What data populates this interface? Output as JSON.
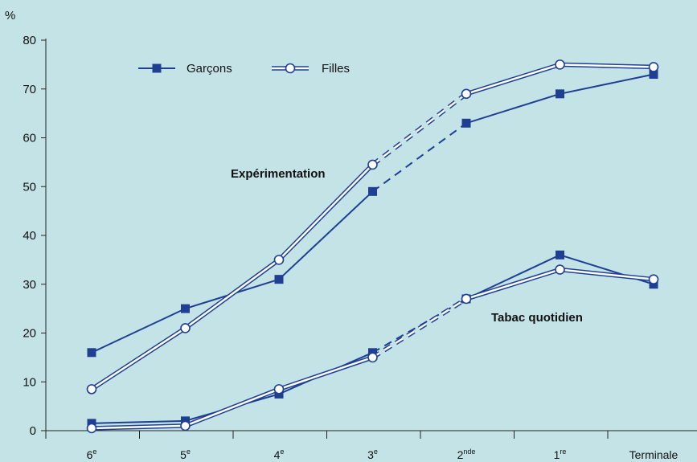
{
  "chart_data": {
    "type": "line",
    "ylabel": "%",
    "ylim": [
      0,
      80
    ],
    "yticks": [
      0,
      10,
      20,
      30,
      40,
      50,
      60,
      70,
      80
    ],
    "categories": [
      {
        "base": "6",
        "sup": "e"
      },
      {
        "base": "5",
        "sup": "e"
      },
      {
        "base": "4",
        "sup": "e"
      },
      {
        "base": "3",
        "sup": "e"
      },
      {
        "base": "2",
        "sup": "nde"
      },
      {
        "base": "1",
        "sup": "re"
      },
      {
        "base": "Terminale",
        "sup": ""
      }
    ],
    "legend": {
      "position": "top-left",
      "entries": [
        {
          "label": "Garçons",
          "marker": "filled-square",
          "color": "#1f3f93"
        },
        {
          "label": "Filles",
          "marker": "hollow-circle",
          "color": "#1f3f93"
        }
      ]
    },
    "groups": [
      {
        "label": "Expérimentation",
        "series": [
          {
            "name": "Garçons",
            "values": [
              16,
              25,
              31,
              49,
              63,
              69,
              73
            ]
          },
          {
            "name": "Filles",
            "values": [
              8.5,
              21,
              35,
              54.5,
              69,
              75,
              74.5
            ]
          }
        ]
      },
      {
        "label": "Tabac quotidien",
        "series": [
          {
            "name": "Garçons",
            "values": [
              1.5,
              2,
              7.5,
              16,
              27,
              36,
              30
            ]
          },
          {
            "name": "Filles",
            "values": [
              0.5,
              1,
              8.5,
              15,
              27,
              33,
              31
            ]
          }
        ]
      }
    ],
    "dashed_segment": [
      3,
      4
    ],
    "colors": {
      "background": "#c4e3e7",
      "series": "#1f3f93",
      "axis": "#222222"
    }
  }
}
